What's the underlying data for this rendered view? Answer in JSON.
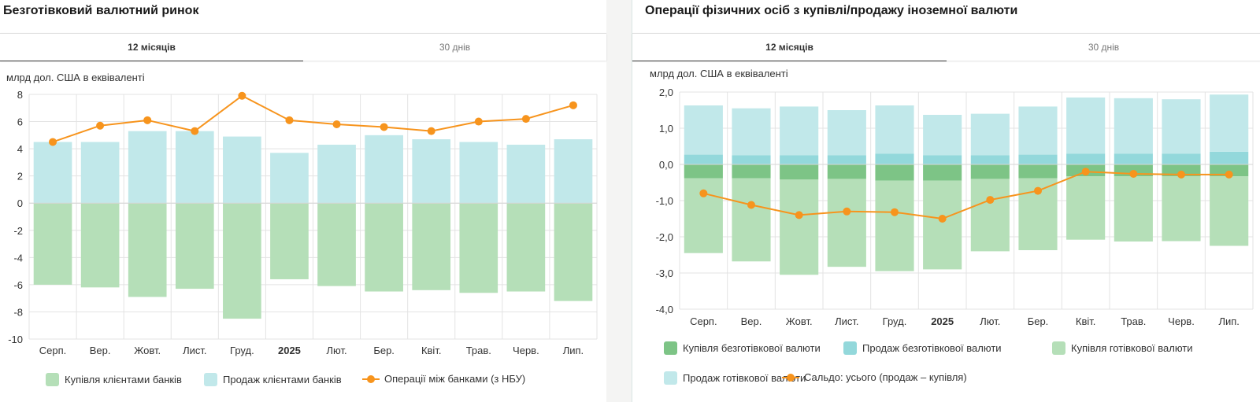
{
  "left_panel": {
    "title": "Безготівковий валютний ринок",
    "tabs": [
      {
        "label": "12 місяців",
        "active": true
      },
      {
        "label": "30 днів",
        "active": false
      }
    ],
    "unit_label": "млрд дол. США в еквіваленті"
  },
  "right_panel": {
    "title": "Операції фізичних осіб з купівлі/продажу іноземної валюти",
    "tabs": [
      {
        "label": "12 місяців",
        "active": true
      },
      {
        "label": "30 днів",
        "active": false
      }
    ],
    "unit_label": "млрд дол. США в еквіваленті"
  },
  "chart_data": [
    {
      "type": "bar",
      "title": "Безготівковий валютний ринок",
      "ylabel": "млрд дол. США в еквіваленті",
      "categories": [
        "Серп.",
        "Вер.",
        "Жовт.",
        "Лист.",
        "Груд.",
        "2025",
        "Лют.",
        "Бер.",
        "Квіт.",
        "Трав.",
        "Черв.",
        "Лип."
      ],
      "bold_categories": [
        "2025"
      ],
      "ylim": [
        -10,
        8
      ],
      "yticks": [
        8,
        6,
        4,
        2,
        0,
        -2,
        -4,
        -6,
        -8,
        -10
      ],
      "ytick_labels": [
        "8",
        "6",
        "4",
        "2",
        "0",
        "-2",
        "-4",
        "-6",
        "-8",
        "-10"
      ],
      "grid": true,
      "legend_position": "bottom",
      "series": [
        {
          "name": "Купівля клієнтами банків",
          "kind": "bar",
          "color": "#b5dfb8",
          "values": [
            -6.0,
            -6.2,
            -6.9,
            -6.3,
            -8.5,
            -5.6,
            -6.1,
            -6.5,
            -6.4,
            -6.6,
            -6.5,
            -7.2
          ]
        },
        {
          "name": "Продаж клієнтами банків",
          "kind": "bar",
          "color": "#c1e8ea",
          "values": [
            4.5,
            4.5,
            5.3,
            5.3,
            4.9,
            3.7,
            4.3,
            5.0,
            4.7,
            4.5,
            4.3,
            4.7
          ]
        },
        {
          "name": "Операції між банками (з НБУ)",
          "kind": "line",
          "color": "#f7941d",
          "values": [
            4.5,
            5.7,
            6.1,
            5.3,
            7.9,
            6.1,
            5.8,
            5.6,
            5.3,
            6.0,
            6.2,
            7.2
          ]
        }
      ]
    },
    {
      "type": "bar",
      "title": "Операції фізичних осіб з купівлі/продажу іноземної валюти",
      "ylabel": "млрд дол. США в еквіваленті",
      "categories": [
        "Серп.",
        "Вер.",
        "Жовт.",
        "Лист.",
        "Груд.",
        "2025",
        "Лют.",
        "Бер.",
        "Квіт.",
        "Трав.",
        "Черв.",
        "Лип."
      ],
      "bold_categories": [
        "2025"
      ],
      "ylim": [
        -4.0,
        2.0
      ],
      "yticks": [
        2.0,
        1.0,
        0.0,
        -1.0,
        -2.0,
        -3.0,
        -4.0
      ],
      "ytick_labels": [
        "2,0",
        "1,0",
        "0,0",
        "-1,0",
        "-2,0",
        "-3,0",
        "-4,0"
      ],
      "grid": true,
      "stacked": true,
      "legend_position": "bottom",
      "series": [
        {
          "name": "Купівля безготівкової валюти",
          "kind": "bar",
          "color": "#7dc486",
          "values": [
            -0.38,
            -0.38,
            -0.42,
            -0.4,
            -0.45,
            -0.45,
            -0.4,
            -0.38,
            -0.33,
            -0.33,
            -0.33,
            -0.33
          ]
        },
        {
          "name": "Продаж безготівкової валюти",
          "kind": "bar",
          "color": "#93d8db",
          "values": [
            0.27,
            0.25,
            0.25,
            0.25,
            0.3,
            0.25,
            0.25,
            0.27,
            0.3,
            0.3,
            0.3,
            0.35
          ]
        },
        {
          "name": "Купівля готівкової валюти",
          "kind": "bar",
          "color": "#b5dfb8",
          "values": [
            -2.07,
            -2.3,
            -2.63,
            -2.43,
            -2.5,
            -2.45,
            -2.0,
            -1.99,
            -1.75,
            -1.8,
            -1.79,
            -1.92
          ]
        },
        {
          "name": "Продаж готівкової валюти",
          "kind": "bar",
          "color": "#c1e8ea",
          "values": [
            1.36,
            1.3,
            1.35,
            1.25,
            1.33,
            1.12,
            1.15,
            1.33,
            1.55,
            1.53,
            1.5,
            1.58
          ]
        },
        {
          "name": "Сальдо: усього (продаж – купівля)",
          "kind": "line",
          "color": "#f7941d",
          "values": [
            -0.8,
            -1.12,
            -1.4,
            -1.3,
            -1.32,
            -1.5,
            -0.98,
            -0.73,
            -0.2,
            -0.26,
            -0.28,
            -0.28
          ]
        }
      ]
    }
  ]
}
